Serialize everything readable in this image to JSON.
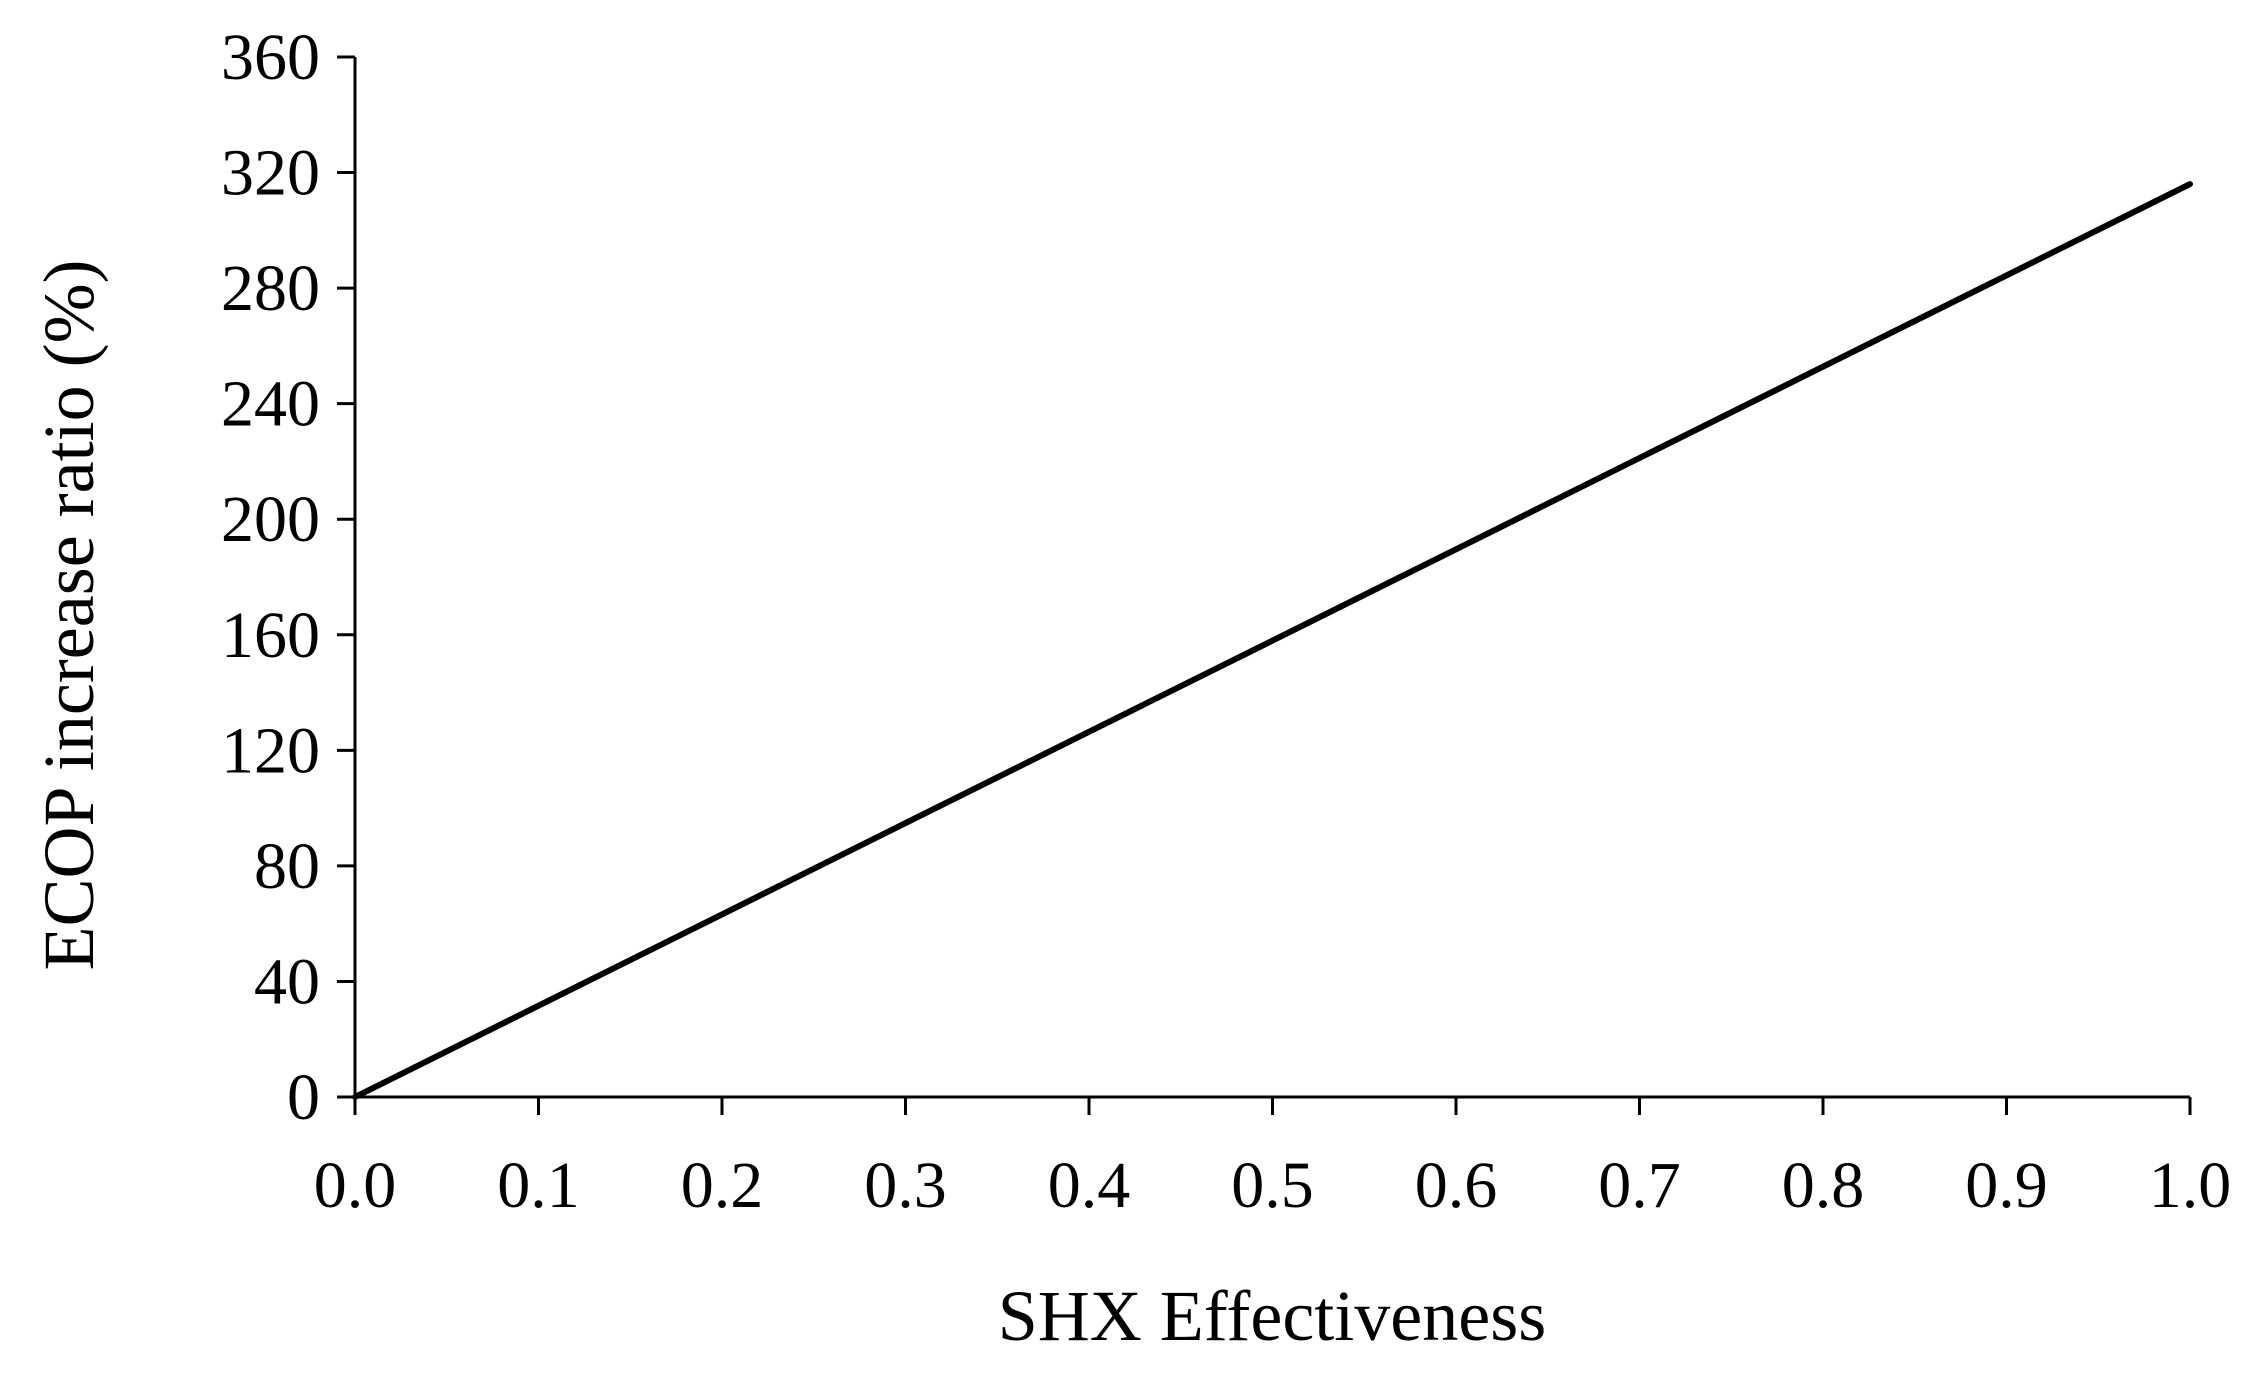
{
  "chart_data": {
    "type": "line",
    "title": "",
    "xlabel": "SHX Effectiveness",
    "ylabel": "ECOP increase ratio (%)",
    "xlim": [
      0.0,
      1.0
    ],
    "ylim": [
      0,
      360
    ],
    "xticks": [
      0.0,
      0.1,
      0.2,
      0.3,
      0.4,
      0.5,
      0.6,
      0.7,
      0.8,
      0.9,
      1.0
    ],
    "xtick_labels": [
      "0.0",
      "0.1",
      "0.2",
      "0.3",
      "0.4",
      "0.5",
      "0.6",
      "0.7",
      "0.8",
      "0.9",
      "1.0"
    ],
    "yticks": [
      0,
      40,
      80,
      120,
      160,
      200,
      240,
      280,
      320,
      360
    ],
    "ytick_labels": [
      "0",
      "40",
      "80",
      "120",
      "160",
      "200",
      "240",
      "280",
      "320",
      "360"
    ],
    "grid": false,
    "legend": "none",
    "series": [
      {
        "color": "#000000",
        "x": [
          0.0,
          0.1,
          0.2,
          0.3,
          0.4,
          0.5,
          0.6,
          0.7,
          0.8,
          0.9,
          1.0
        ],
        "y": [
          0,
          31.6,
          63.2,
          94.8,
          126.4,
          158,
          189.6,
          221.2,
          252.8,
          284.4,
          316
        ]
      }
    ]
  }
}
